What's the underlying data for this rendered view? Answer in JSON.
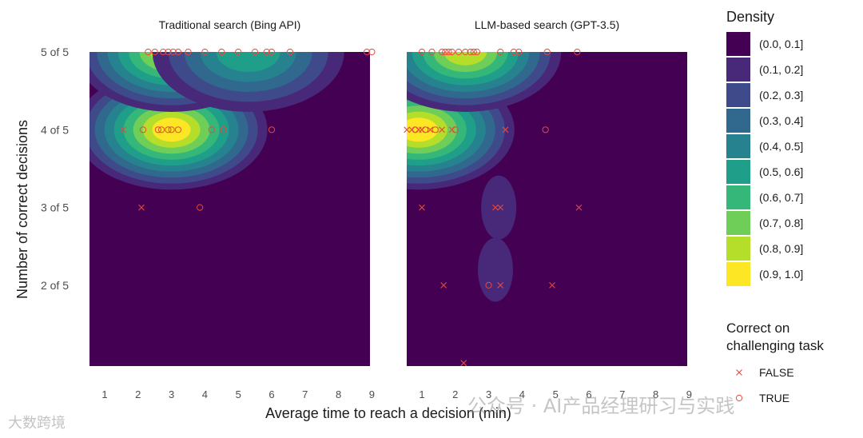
{
  "chart_data": {
    "type": "heatmap",
    "xlabel": "Average time to reach a decision (min)",
    "ylabel": "Number of correct decisions",
    "xlim": [
      0.5,
      9.0
    ],
    "ylim": [
      1.0,
      5.0
    ],
    "x_ticks": [
      1,
      2,
      3,
      4,
      5,
      6,
      7,
      8,
      9
    ],
    "y_ticks": [
      {
        "value": 5,
        "label": "5 of 5"
      },
      {
        "value": 4,
        "label": "4 of 5"
      },
      {
        "value": 3,
        "label": "3 of 5"
      },
      {
        "value": 2,
        "label": "2 of 5"
      }
    ],
    "density_legend": {
      "title": "Density",
      "bins": [
        {
          "label": "(0.0, 0.1]",
          "color": "#440154"
        },
        {
          "label": "(0.1, 0.2]",
          "color": "#482878"
        },
        {
          "label": "(0.2, 0.3]",
          "color": "#3e4a89"
        },
        {
          "label": "(0.3, 0.4]",
          "color": "#31688e"
        },
        {
          "label": "(0.4, 0.5]",
          "color": "#26828e"
        },
        {
          "label": "(0.5, 0.6]",
          "color": "#1f9e89"
        },
        {
          "label": "(0.6, 0.7]",
          "color": "#35b779"
        },
        {
          "label": "(0.7, 0.8]",
          "color": "#6ece58"
        },
        {
          "label": "(0.8, 0.9]",
          "color": "#b5de2b"
        },
        {
          "label": "(0.9, 1.0]",
          "color": "#fde725"
        }
      ]
    },
    "marker_legend": {
      "title_line1": "Correct on",
      "title_line2": "challenging task",
      "items": [
        {
          "label": "FALSE",
          "marker": "x"
        },
        {
          "label": "TRUE",
          "marker": "o"
        }
      ],
      "color": "#e8483d"
    },
    "panels": [
      {
        "title": "Traditional search (Bing API)",
        "points": [
          {
            "x": 2.3,
            "y": 5,
            "correct": true
          },
          {
            "x": 2.5,
            "y": 5,
            "correct": true
          },
          {
            "x": 2.75,
            "y": 5,
            "correct": true
          },
          {
            "x": 2.9,
            "y": 5,
            "correct": true
          },
          {
            "x": 3.05,
            "y": 5,
            "correct": true
          },
          {
            "x": 3.2,
            "y": 5,
            "correct": true
          },
          {
            "x": 3.5,
            "y": 5,
            "correct": true
          },
          {
            "x": 4.0,
            "y": 5,
            "correct": true
          },
          {
            "x": 4.5,
            "y": 5,
            "correct": true
          },
          {
            "x": 5.0,
            "y": 5,
            "correct": true
          },
          {
            "x": 5.5,
            "y": 5,
            "correct": true
          },
          {
            "x": 5.85,
            "y": 5,
            "correct": true
          },
          {
            "x": 6.0,
            "y": 5,
            "correct": true
          },
          {
            "x": 6.55,
            "y": 5,
            "correct": true
          },
          {
            "x": 8.85,
            "y": 5,
            "correct": true
          },
          {
            "x": 9.0,
            "y": 5,
            "correct": true
          },
          {
            "x": 1.55,
            "y": 4,
            "correct": false
          },
          {
            "x": 2.15,
            "y": 4,
            "correct": true
          },
          {
            "x": 2.6,
            "y": 4,
            "correct": true
          },
          {
            "x": 2.7,
            "y": 4,
            "correct": true
          },
          {
            "x": 2.9,
            "y": 4,
            "correct": true
          },
          {
            "x": 3.0,
            "y": 4,
            "correct": true
          },
          {
            "x": 3.2,
            "y": 4,
            "correct": true
          },
          {
            "x": 4.2,
            "y": 4,
            "correct": true
          },
          {
            "x": 4.55,
            "y": 4,
            "correct": true
          },
          {
            "x": 6.0,
            "y": 4,
            "correct": true
          },
          {
            "x": 2.1,
            "y": 3,
            "correct": false
          },
          {
            "x": 3.85,
            "y": 3,
            "correct": true
          }
        ],
        "density_peaks": [
          {
            "x": 3.0,
            "y": 4.0,
            "level": 0.95
          },
          {
            "x": 3.0,
            "y": 5.0,
            "level": 0.85
          },
          {
            "x": 5.3,
            "y": 5.0,
            "level": 0.55
          }
        ]
      },
      {
        "title": "LLM-based search (GPT-3.5)",
        "points": [
          {
            "x": 1.0,
            "y": 5,
            "correct": true
          },
          {
            "x": 1.3,
            "y": 5,
            "correct": true
          },
          {
            "x": 1.6,
            "y": 5,
            "correct": true
          },
          {
            "x": 1.7,
            "y": 5,
            "correct": true
          },
          {
            "x": 1.8,
            "y": 5,
            "correct": true
          },
          {
            "x": 1.9,
            "y": 5,
            "correct": true
          },
          {
            "x": 2.1,
            "y": 5,
            "correct": true
          },
          {
            "x": 2.3,
            "y": 5,
            "correct": true
          },
          {
            "x": 2.45,
            "y": 5,
            "correct": true
          },
          {
            "x": 2.55,
            "y": 5,
            "correct": true
          },
          {
            "x": 2.65,
            "y": 5,
            "correct": true
          },
          {
            "x": 3.35,
            "y": 5,
            "correct": true
          },
          {
            "x": 3.75,
            "y": 5,
            "correct": true
          },
          {
            "x": 3.9,
            "y": 5,
            "correct": true
          },
          {
            "x": 4.75,
            "y": 5,
            "correct": true
          },
          {
            "x": 5.65,
            "y": 5,
            "correct": true
          },
          {
            "x": 0.55,
            "y": 4,
            "correct": false
          },
          {
            "x": 0.7,
            "y": 4,
            "correct": false
          },
          {
            "x": 0.8,
            "y": 4,
            "correct": true
          },
          {
            "x": 0.9,
            "y": 4,
            "correct": false
          },
          {
            "x": 1.0,
            "y": 4,
            "correct": false
          },
          {
            "x": 1.1,
            "y": 4,
            "correct": true
          },
          {
            "x": 1.25,
            "y": 4,
            "correct": false
          },
          {
            "x": 1.4,
            "y": 4,
            "correct": true
          },
          {
            "x": 1.6,
            "y": 4,
            "correct": false
          },
          {
            "x": 1.9,
            "y": 4,
            "correct": false
          },
          {
            "x": 2.0,
            "y": 4,
            "correct": true
          },
          {
            "x": 3.5,
            "y": 4,
            "correct": false
          },
          {
            "x": 4.7,
            "y": 4,
            "correct": true
          },
          {
            "x": 1.0,
            "y": 3,
            "correct": false
          },
          {
            "x": 3.2,
            "y": 3,
            "correct": false
          },
          {
            "x": 3.35,
            "y": 3,
            "correct": false
          },
          {
            "x": 5.7,
            "y": 3,
            "correct": false
          },
          {
            "x": 1.65,
            "y": 2,
            "correct": false
          },
          {
            "x": 3.0,
            "y": 2,
            "correct": true
          },
          {
            "x": 3.35,
            "y": 2,
            "correct": false
          },
          {
            "x": 4.9,
            "y": 2,
            "correct": false
          },
          {
            "x": 2.25,
            "y": 1,
            "correct": false
          }
        ],
        "density_peaks": [
          {
            "x": 0.9,
            "y": 4.0,
            "level": 0.95
          },
          {
            "x": 2.3,
            "y": 5.0,
            "level": 0.85
          },
          {
            "x": 3.3,
            "y": 3.0,
            "level": 0.15
          },
          {
            "x": 3.2,
            "y": 2.2,
            "level": 0.15
          }
        ]
      }
    ]
  },
  "watermarks": {
    "right": "公众号 · AI产品经理研习与实践",
    "left": "大数跨境"
  }
}
